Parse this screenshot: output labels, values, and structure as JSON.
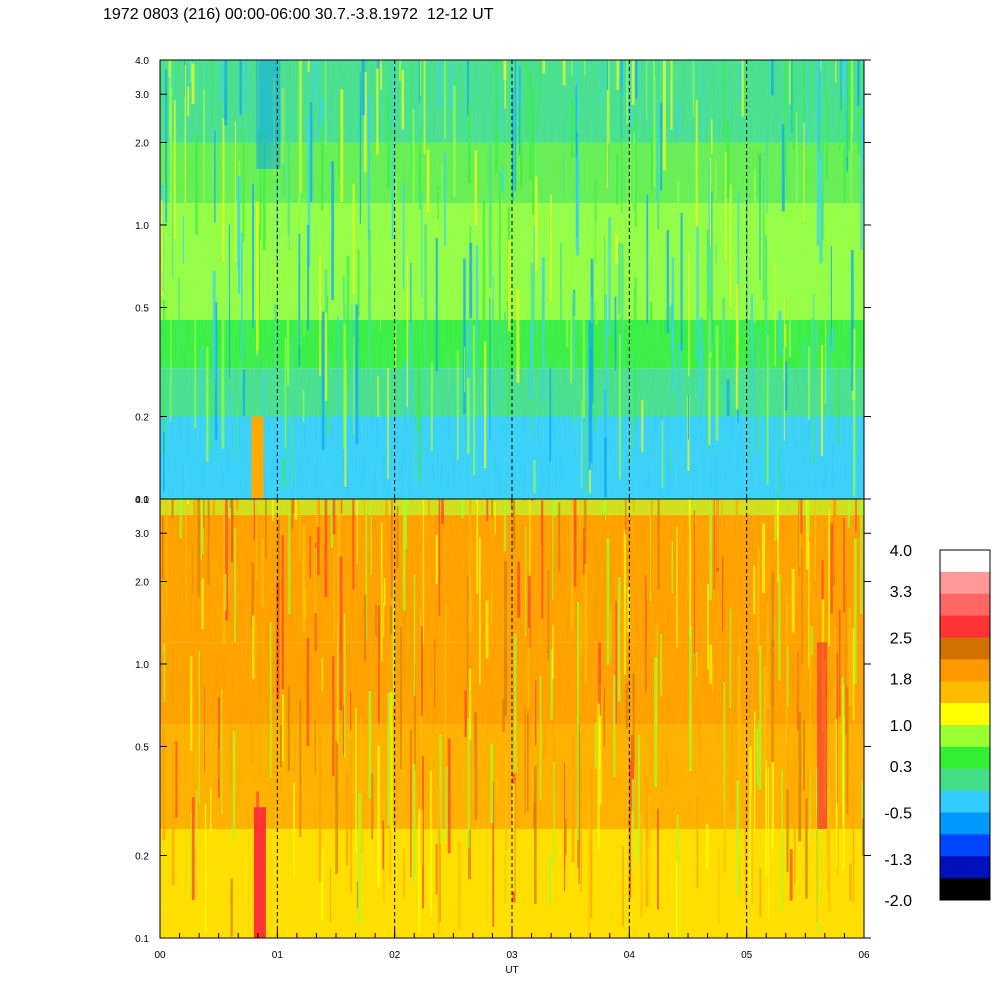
{
  "header": {
    "title": "1972 0803 (216) 00:00-06:00 30.7.-3.8.1972  12-12 UT"
  },
  "chart_data": {
    "type": "heatmap",
    "title": "1972 0803 (216) 00:00-06:00 30.7.-3.8.1972  12-12 UT",
    "xlabel": "UT",
    "x_tick_labels": [
      "00",
      "01",
      "02",
      "03",
      "04",
      "05",
      "06"
    ],
    "x_range": [
      0,
      6
    ],
    "hour_markers": [
      1,
      2,
      3,
      4,
      5
    ],
    "y_scale": "log",
    "y_range": [
      0.1,
      4.0
    ],
    "y_ticks": [
      0.1,
      0.2,
      0.5,
      1.0,
      2.0,
      3.0,
      4.0
    ],
    "y_tick_labels": [
      "0.1",
      "0.2",
      "0.5",
      "1.0",
      "2.0",
      "3.0",
      "4.0"
    ],
    "panels": [
      {
        "name": "upper",
        "dominant": "green / cyan with yellow patches",
        "low_band_0.1_to_0.2": "cyan",
        "mid_band_0.2_to_0.4": "green",
        "high_band_2.0_to_4.0": "cyan-green"
      },
      {
        "name": "lower",
        "dominant": "orange / yellow",
        "high_band": "orange",
        "features": "dark orange and red streaks near 0.5-1.0 and near 00:50"
      }
    ],
    "colorbar": {
      "range": [
        -2.0,
        4.0
      ],
      "labels": [
        "4.0",
        "3.3",
        "2.5",
        "1.8",
        "1.0",
        "0.3",
        "-0.5",
        "-1.3",
        "-2.0"
      ],
      "colors": [
        "#ffffff",
        "#ff9999",
        "#ff6666",
        "#ff3333",
        "#d27000",
        "#ff9900",
        "#ffbb00",
        "#ffff00",
        "#99ff33",
        "#33ee33",
        "#44dd88",
        "#33ccff",
        "#0099ff",
        "#0044ff",
        "#0011bb",
        "#000000"
      ]
    }
  }
}
